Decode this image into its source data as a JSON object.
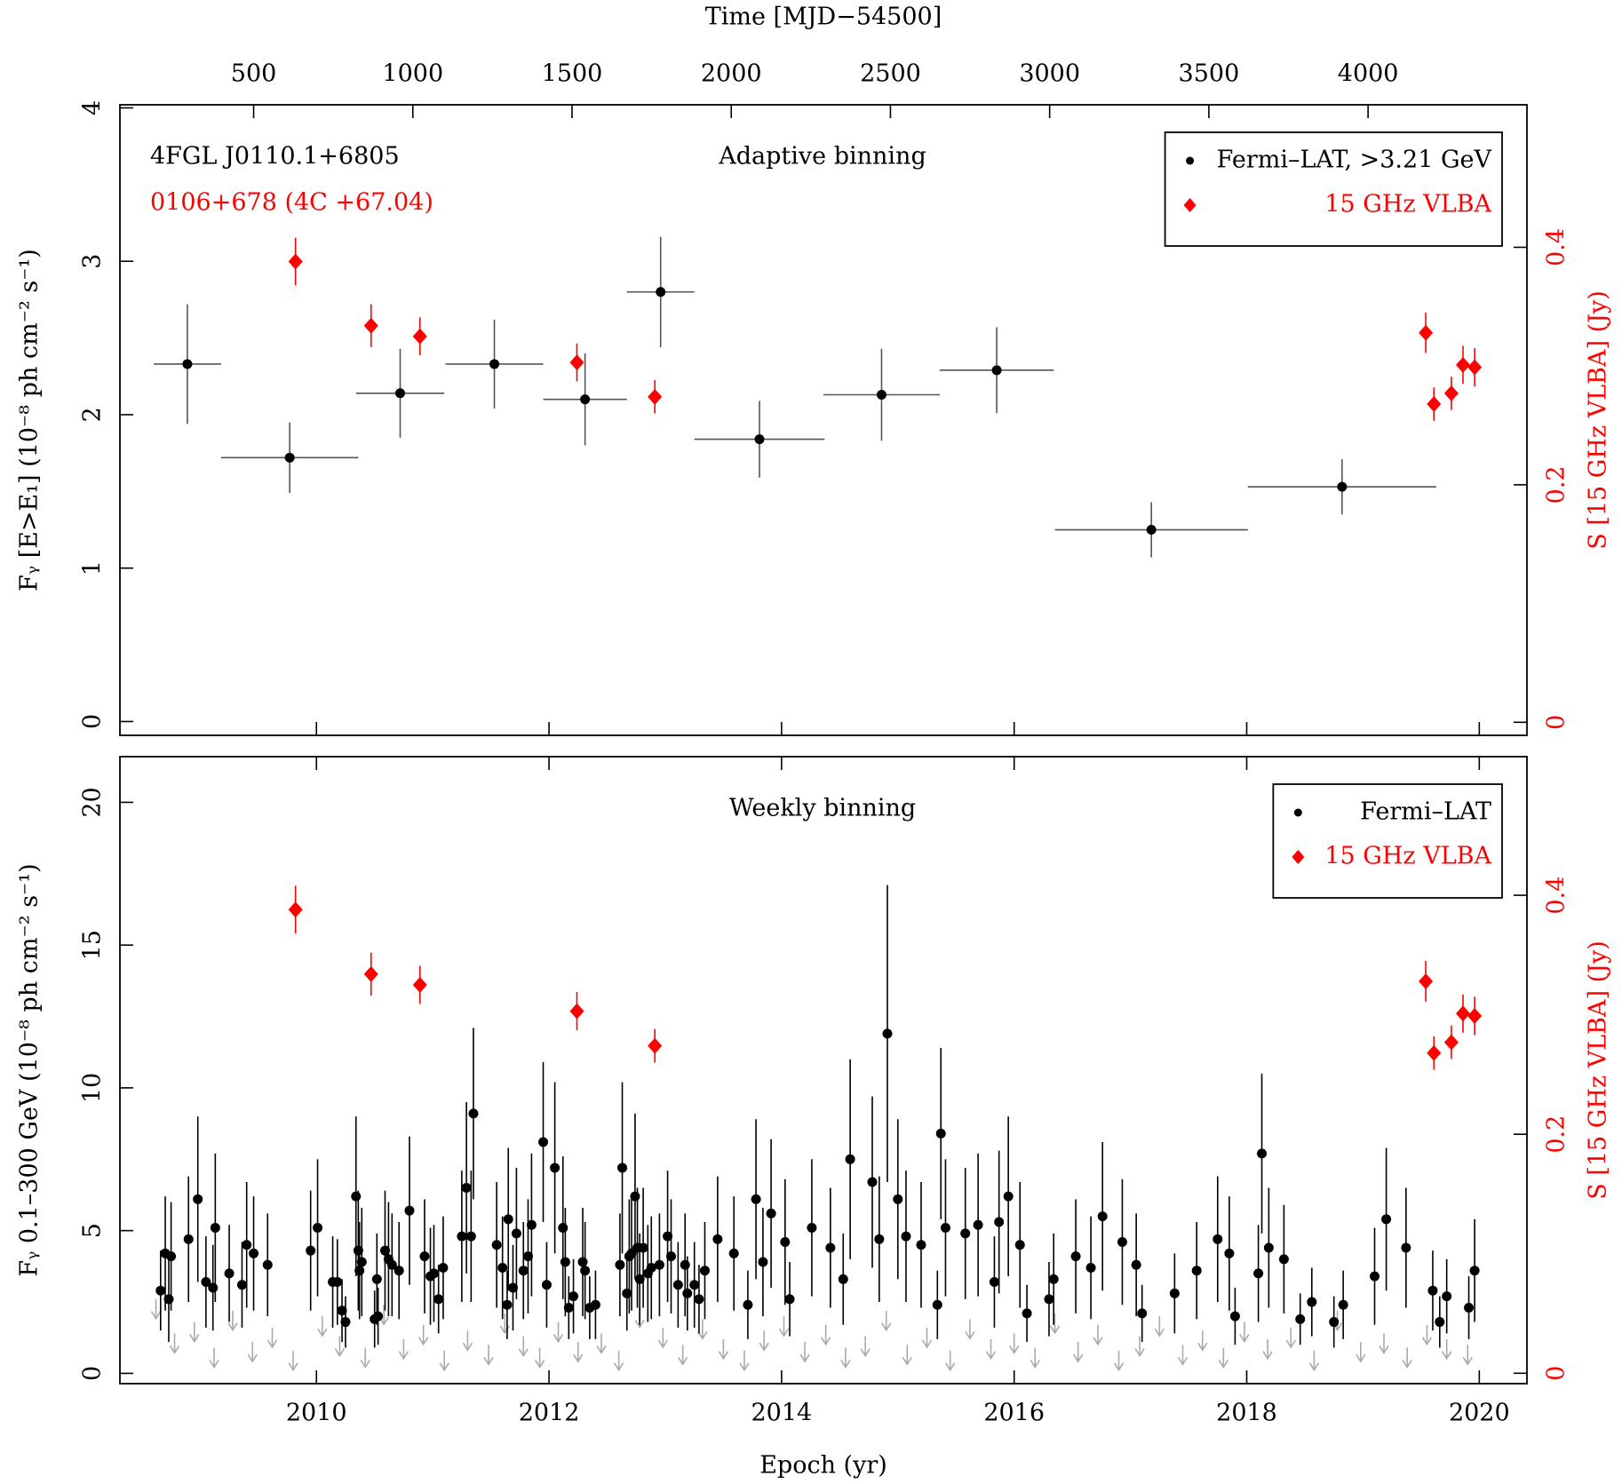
{
  "chart_data": [
    {
      "type": "scatter",
      "title": "Adaptive binning",
      "annotations": [
        {
          "text": "4FGL J0110.1+6805",
          "color": "#000000"
        },
        {
          "text": "0106+678 (4C +67.04)",
          "color": "#ff0000"
        }
      ],
      "ylabel": "Fᵧ [E>E₁] (10⁻⁸ ph cm⁻² s⁻¹)",
      "y2label": "S [15 GHz VLBA] (Jy)",
      "x2label": "Time [MJD−54500]",
      "xlim": [
        2008.31,
        2020.41
      ],
      "xticks": [
        2010,
        2012,
        2014,
        2016,
        2018,
        2020
      ],
      "x2lim": [
        80,
        4499
      ],
      "x2ticks": [
        500,
        1000,
        1500,
        2000,
        2500,
        3000,
        3500,
        4000
      ],
      "ylim": [
        -0.09,
        4.02
      ],
      "yticks": [
        0,
        1,
        2,
        3,
        4
      ],
      "y2lim": [
        -0.011,
        0.52
      ],
      "y2ticks": [
        0,
        0.2,
        0.4
      ],
      "legend": "upper right",
      "series": [
        {
          "name": "Fermi–LAT, >3.21 GeV",
          "color": "#000000",
          "marker": "circle",
          "x": [
            2008.89,
            2009.77,
            2010.72,
            2011.53,
            2012.31,
            2012.96,
            2013.81,
            2014.86,
            2015.85,
            2017.18,
            2018.82
          ],
          "xerrors": [
            0.29,
            0.59,
            0.38,
            0.42,
            0.36,
            0.29,
            0.56,
            0.5,
            0.49,
            0.83,
            0.81
          ],
          "values": [
            2.33,
            1.72,
            2.14,
            2.33,
            2.1,
            2.8,
            1.84,
            2.13,
            2.29,
            1.25,
            1.53
          ],
          "errors": [
            0.39,
            0.23,
            0.29,
            0.29,
            0.3,
            0.36,
            0.25,
            0.3,
            0.28,
            0.18,
            0.18
          ]
        },
        {
          "name": "15 GHz VLBA",
          "color": "#ff0000",
          "marker": "diamond",
          "axis": "y2",
          "x": [
            2009.82,
            2010.47,
            2010.89,
            2012.24,
            2012.91,
            2019.54,
            2019.61,
            2019.76,
            2019.86,
            2019.96
          ],
          "values": [
            0.388,
            0.334,
            0.325,
            0.303,
            0.274,
            0.328,
            0.268,
            0.277,
            0.301,
            0.299
          ],
          "errors": [
            0.02,
            0.018,
            0.016,
            0.016,
            0.014,
            0.017,
            0.014,
            0.014,
            0.016,
            0.016
          ]
        }
      ]
    },
    {
      "type": "scatter",
      "title": "Weekly binning",
      "ylabel": "Fᵧ 0.1–300 GeV (10⁻⁸ ph cm⁻² s⁻¹)",
      "y2label": "S [15 GHz VLBA] (Jy)",
      "xlabel": "Epoch (yr)",
      "xlim": [
        2008.31,
        2020.41
      ],
      "xticks": [
        2010,
        2012,
        2014,
        2016,
        2018,
        2020
      ],
      "ylim": [
        -0.36,
        21.6
      ],
      "yticks": [
        0,
        5,
        10,
        15,
        20
      ],
      "y2lim": [
        -0.0087,
        0.516
      ],
      "y2ticks": [
        0,
        0.2,
        0.4
      ],
      "legend": "upper right",
      "upper_limits": {
        "color": "#aaaaaa",
        "x": [
          2008.62,
          2008.78,
          2008.95,
          2009.12,
          2009.28,
          2009.45,
          2009.62,
          2009.8,
          2010.05,
          2010.2,
          2010.42,
          2010.58,
          2010.75,
          2010.92,
          2011.1,
          2011.3,
          2011.48,
          2011.62,
          2011.78,
          2011.92,
          2012.08,
          2012.25,
          2012.45,
          2012.6,
          2012.78,
          2012.98,
          2013.15,
          2013.32,
          2013.5,
          2013.68,
          2013.85,
          2014.02,
          2014.2,
          2014.38,
          2014.55,
          2014.72,
          2014.9,
          2015.08,
          2015.25,
          2015.45,
          2015.62,
          2015.8,
          2016.0,
          2016.18,
          2016.35,
          2016.55,
          2016.72,
          2016.9,
          2017.08,
          2017.25,
          2017.45,
          2017.62,
          2017.8,
          2017.98,
          2018.18,
          2018.38,
          2018.58,
          2018.78,
          2018.98,
          2019.18,
          2019.38,
          2019.55,
          2019.72,
          2019.9
        ],
        "values": [
          2.6,
          1.4,
          1.8,
          0.9,
          2.2,
          1.1,
          1.6,
          0.8,
          2.0,
          1.3,
          0.9,
          2.4,
          1.2,
          1.7,
          0.8,
          1.5,
          1.0,
          2.1,
          1.3,
          0.9,
          1.8,
          1.1,
          1.4,
          0.8,
          2.3,
          1.6,
          1.0,
          1.9,
          1.2,
          0.8,
          1.5,
          2.0,
          1.1,
          1.7,
          0.9,
          1.3,
          2.2,
          1.0,
          1.6,
          0.8,
          1.9,
          1.2,
          1.4,
          0.9,
          2.1,
          1.1,
          1.7,
          0.8,
          1.3,
          2.0,
          1.0,
          1.5,
          0.9,
          1.8,
          1.2,
          1.6,
          0.8,
          2.2,
          1.1,
          1.4,
          0.9,
          1.7,
          1.2,
          1.0
        ]
      },
      "series": [
        {
          "name": "Fermi–LAT",
          "color": "#000000",
          "marker": "circle",
          "x": [
            2008.66,
            2008.7,
            2008.73,
            2008.75,
            2008.9,
            2008.98,
            2009.05,
            2009.11,
            2009.13,
            2009.25,
            2009.36,
            2009.4,
            2009.46,
            2009.58,
            2009.95,
            2010.01,
            2010.14,
            2010.18,
            2010.22,
            2010.25,
            2010.34,
            2010.36,
            2010.37,
            2010.39,
            2010.5,
            2010.52,
            2010.53,
            2010.59,
            2010.62,
            2010.65,
            2010.71,
            2010.8,
            2010.93,
            2010.98,
            2011.01,
            2011.05,
            2011.09,
            2011.25,
            2011.29,
            2011.33,
            2011.35,
            2011.55,
            2011.6,
            2011.64,
            2011.65,
            2011.69,
            2011.72,
            2011.78,
            2011.82,
            2011.85,
            2011.95,
            2011.98,
            2012.05,
            2012.12,
            2012.14,
            2012.17,
            2012.21,
            2012.29,
            2012.31,
            2012.35,
            2012.4,
            2012.61,
            2012.63,
            2012.67,
            2012.69,
            2012.71,
            2012.74,
            2012.76,
            2012.78,
            2012.81,
            2012.85,
            2012.88,
            2012.95,
            2013.02,
            2013.05,
            2013.11,
            2013.17,
            2013.19,
            2013.25,
            2013.29,
            2013.34,
            2013.45,
            2013.59,
            2013.71,
            2013.78,
            2013.84,
            2013.91,
            2014.03,
            2014.07,
            2014.26,
            2014.42,
            2014.53,
            2014.59,
            2014.78,
            2014.84,
            2014.91,
            2015.0,
            2015.07,
            2015.2,
            2015.34,
            2015.37,
            2015.41,
            2015.58,
            2015.69,
            2015.83,
            2015.87,
            2015.95,
            2016.05,
            2016.11,
            2016.3,
            2016.34,
            2016.53,
            2016.66,
            2016.76,
            2016.93,
            2017.05,
            2017.1,
            2017.38,
            2017.57,
            2017.75,
            2017.85,
            2017.9,
            2018.1,
            2018.13,
            2018.19,
            2018.32,
            2018.46,
            2018.56,
            2018.75,
            2018.83,
            2019.1,
            2019.2,
            2019.37,
            2019.6,
            2019.66,
            2019.72,
            2019.91,
            2019.96
          ],
          "values": [
            2.9,
            4.2,
            2.6,
            4.1,
            4.7,
            6.1,
            3.2,
            3.0,
            5.1,
            3.5,
            3.1,
            4.5,
            4.2,
            3.8,
            4.3,
            5.1,
            3.2,
            3.2,
            2.2,
            1.8,
            6.2,
            4.3,
            3.6,
            3.9,
            1.9,
            3.3,
            2.0,
            4.3,
            4.0,
            3.8,
            3.6,
            5.7,
            4.1,
            3.4,
            3.5,
            2.6,
            3.7,
            4.8,
            6.5,
            4.8,
            9.1,
            4.5,
            3.7,
            2.4,
            5.4,
            3.0,
            4.9,
            3.6,
            4.1,
            5.2,
            8.1,
            3.1,
            7.2,
            5.1,
            3.9,
            2.3,
            2.7,
            3.9,
            3.6,
            2.3,
            2.4,
            3.8,
            7.2,
            2.8,
            4.1,
            4.2,
            6.2,
            4.4,
            3.3,
            4.4,
            3.5,
            3.7,
            3.8,
            4.8,
            4.1,
            3.1,
            3.8,
            2.8,
            3.1,
            2.6,
            3.6,
            4.7,
            4.2,
            2.4,
            6.1,
            3.9,
            5.6,
            4.6,
            2.6,
            5.1,
            4.4,
            3.3,
            7.5,
            6.7,
            4.7,
            11.9,
            6.1,
            4.8,
            4.5,
            2.4,
            8.4,
            5.1,
            4.9,
            5.2,
            3.2,
            5.3,
            6.2,
            4.5,
            2.1,
            2.6,
            3.3,
            4.1,
            3.7,
            5.5,
            4.6,
            3.8,
            2.1,
            2.8,
            3.6,
            4.7,
            4.2,
            2.0,
            3.5,
            7.7,
            4.4,
            4.0,
            1.9,
            2.5,
            1.8,
            2.4,
            3.4,
            5.4,
            4.4,
            2.9,
            1.8,
            2.7,
            2.3,
            3.6
          ],
          "errors": [
            1.4,
            2.0,
            1.5,
            1.9,
            2.2,
            2.9,
            1.6,
            1.5,
            2.6,
            1.7,
            1.5,
            2.2,
            2.0,
            1.8,
            2.1,
            2.4,
            1.6,
            1.5,
            1.1,
            0.9,
            2.8,
            2.1,
            1.7,
            1.9,
            1.0,
            1.6,
            1.0,
            2.1,
            2.0,
            1.8,
            1.7,
            2.6,
            2.0,
            1.7,
            1.7,
            1.2,
            1.8,
            2.3,
            3.0,
            2.3,
            3.0,
            2.2,
            1.8,
            1.2,
            2.5,
            1.5,
            2.3,
            1.7,
            2.0,
            2.5,
            2.8,
            1.5,
            3.0,
            2.5,
            1.9,
            1.1,
            1.3,
            1.9,
            1.7,
            1.1,
            1.2,
            1.8,
            3.0,
            1.3,
            2.0,
            2.0,
            2.9,
            2.1,
            1.6,
            2.1,
            1.7,
            1.8,
            1.8,
            2.3,
            2.0,
            1.5,
            1.8,
            1.3,
            1.5,
            1.2,
            1.7,
            2.2,
            2.0,
            1.2,
            2.8,
            1.9,
            2.6,
            2.2,
            1.3,
            2.4,
            2.1,
            1.6,
            3.5,
            3.0,
            2.2,
            5.2,
            2.8,
            2.3,
            2.2,
            1.2,
            3.0,
            2.4,
            2.3,
            2.5,
            1.6,
            2.5,
            2.8,
            2.2,
            1.0,
            1.3,
            1.6,
            2.0,
            1.8,
            2.6,
            2.2,
            1.8,
            1.0,
            1.4,
            1.7,
            2.2,
            2.0,
            1.0,
            1.7,
            2.8,
            2.1,
            1.9,
            0.9,
            1.2,
            0.9,
            1.2,
            1.7,
            2.5,
            2.1,
            1.4,
            0.9,
            1.3,
            1.1,
            1.8
          ]
        },
        {
          "name": "15 GHz VLBA",
          "color": "#ff0000",
          "marker": "diamond",
          "axis": "y2",
          "x": [
            2009.82,
            2010.47,
            2010.89,
            2012.24,
            2012.91,
            2019.54,
            2019.61,
            2019.76,
            2019.86,
            2019.96
          ],
          "values": [
            0.388,
            0.334,
            0.325,
            0.303,
            0.274,
            0.328,
            0.268,
            0.277,
            0.301,
            0.299
          ],
          "errors": [
            0.02,
            0.018,
            0.016,
            0.016,
            0.014,
            0.017,
            0.014,
            0.014,
            0.016,
            0.016
          ]
        }
      ]
    }
  ]
}
